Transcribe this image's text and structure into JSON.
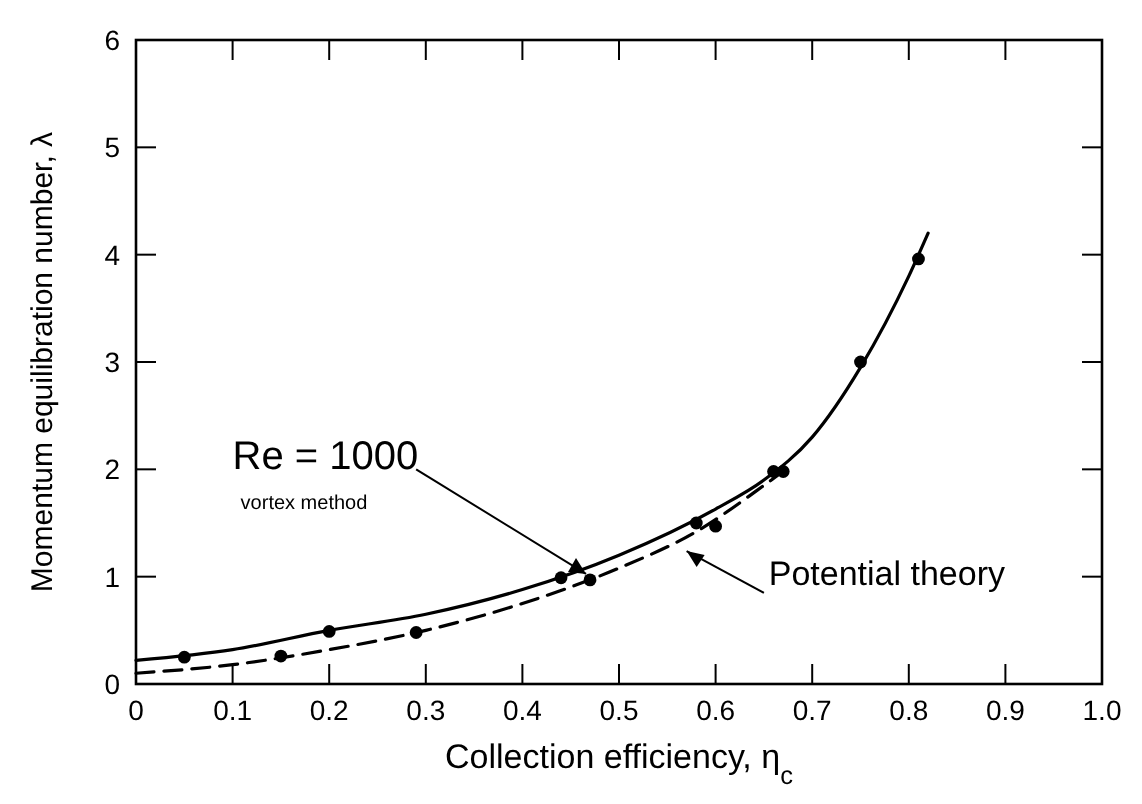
{
  "chart_data": {
    "type": "line",
    "xlabel": "Collection efficiency, η$_{c}$",
    "ylabel": "Momentum equilibration number, λ",
    "xlim": [
      0,
      1
    ],
    "ylim": [
      0,
      6
    ],
    "xticks": [
      0,
      0.1,
      0.2,
      0.3,
      0.4,
      0.5,
      0.6,
      0.7,
      0.8,
      0.9,
      {
        "value": 1,
        "label": "1.0"
      }
    ],
    "yticks": [
      0,
      1,
      2,
      3,
      4,
      5,
      6
    ],
    "grid": false,
    "series": [
      {
        "color": "#000000",
        "line_style": "solid",
        "x": [
          0,
          0.1,
          0.2,
          0.3,
          0.4,
          0.5,
          0.6,
          0.65,
          0.7,
          0.75,
          0.8,
          0.82
        ],
        "values": [
          0.22,
          0.32,
          0.5,
          0.65,
          0.88,
          1.2,
          1.63,
          1.9,
          2.3,
          2.95,
          3.8,
          4.2
        ]
      },
      {
        "color": "#000000",
        "line_style": "dashed",
        "x": [
          0,
          0.1,
          0.2,
          0.3,
          0.4,
          0.5,
          0.58,
          0.65,
          0.68
        ],
        "values": [
          0.1,
          0.18,
          0.32,
          0.5,
          0.75,
          1.08,
          1.42,
          1.85,
          2.05
        ]
      },
      {
        "type": "scatter",
        "color": "#000000",
        "marker": "circle",
        "x": [
          0.05,
          0.2,
          0.44,
          0.58,
          0.66,
          0.75,
          0.81
        ],
        "values": [
          0.25,
          0.49,
          0.99,
          1.5,
          1.98,
          3.0,
          3.96
        ]
      },
      {
        "type": "scatter",
        "color": "#000000",
        "marker": "circle",
        "x": [
          0.15,
          0.29,
          0.47,
          0.6,
          0.67
        ],
        "values": [
          0.26,
          0.48,
          0.97,
          1.47,
          1.98
        ]
      }
    ],
    "annotations": [
      {
        "text": "Re = 1000",
        "x": 0.47,
        "y": 1.1
      },
      "vortex method",
      {
        "text": "Potential theory",
        "x": 0.57,
        "y": 1.35
      }
    ]
  }
}
